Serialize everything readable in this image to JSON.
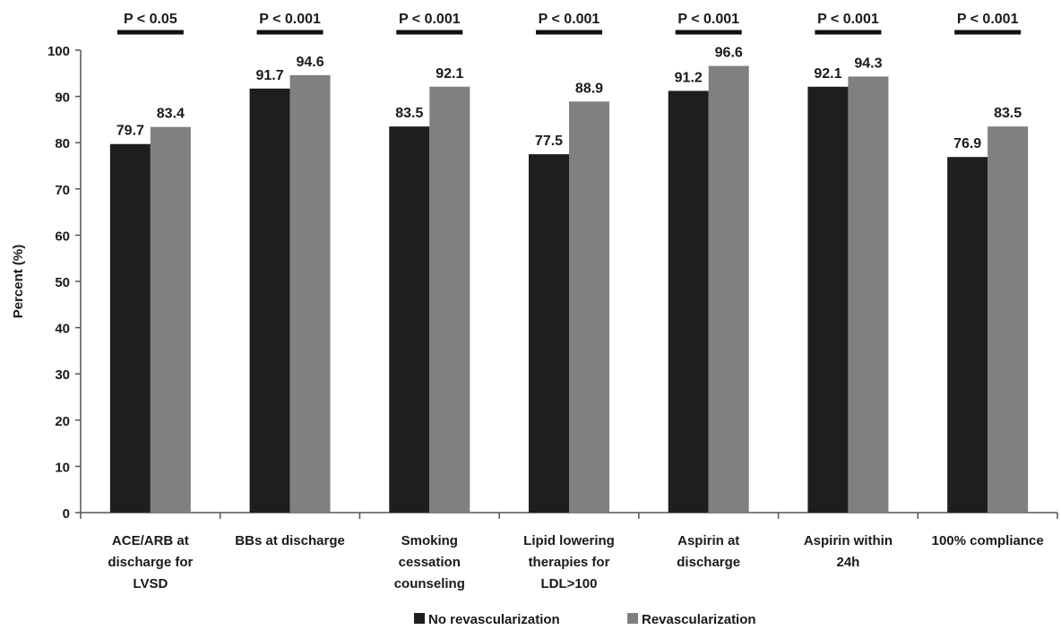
{
  "chart_data": {
    "type": "bar",
    "title": "",
    "xlabel": "",
    "ylabel": "Percent (%)",
    "ylim": [
      0,
      100
    ],
    "yticks": [
      0,
      10,
      20,
      30,
      40,
      50,
      60,
      70,
      80,
      90,
      100
    ],
    "grid": false,
    "legend_position": "bottom",
    "categories": [
      [
        "ACE/ARB at",
        "discharge for",
        "LVSD"
      ],
      [
        "BBs at discharge"
      ],
      [
        "Smoking",
        "cessation",
        "counseling"
      ],
      [
        "Lipid lowering",
        "therapies for",
        "LDL>100"
      ],
      [
        "Aspirin at",
        "discharge"
      ],
      [
        "Aspirin within",
        "24h"
      ],
      [
        "100% compliance"
      ]
    ],
    "series": [
      {
        "name": "No revascularization",
        "color": "#1e1e1e",
        "values": [
          79.7,
          91.7,
          83.5,
          77.5,
          91.2,
          92.1,
          76.9
        ]
      },
      {
        "name": "Revascularization",
        "color": "#808080",
        "values": [
          83.4,
          94.6,
          92.1,
          88.9,
          96.6,
          94.3,
          83.5
        ]
      }
    ],
    "data_labels": [
      [
        "79.7",
        "91.7",
        "83.5",
        "77.5",
        "91.2",
        "92.1",
        "76.9"
      ],
      [
        "83.4",
        "94.6",
        "92.1",
        "88.9",
        "96.6",
        "94.3",
        "83.5"
      ]
    ],
    "annotations": [
      "P < 0.05",
      "P < 0.001",
      "P < 0.001",
      "P < 0.001",
      "P < 0.001",
      "P < 0.001",
      "P < 0.001"
    ]
  }
}
